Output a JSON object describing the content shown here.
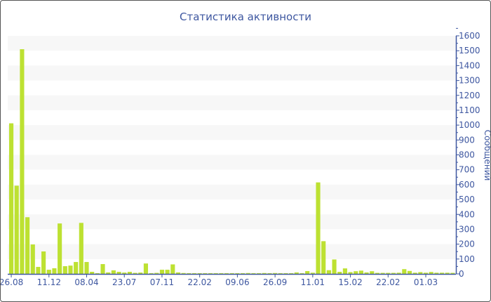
{
  "chart_data": {
    "type": "bar",
    "title": "Статистика активности",
    "ylabel": "Сообщений",
    "xlabel": "",
    "ylim": [
      0,
      1600
    ],
    "ytick_step": 100,
    "grid": "alternating horizontal bands",
    "bar_color": "#bde132",
    "text_color": "#3e57a0",
    "x_tick_labels": [
      "26.08",
      "11.12",
      "08.04",
      "23.07",
      "07.11",
      "22.02",
      "09.06",
      "26.09",
      "11.01",
      "15.02",
      "22.02",
      "01.03"
    ],
    "x_tick_every": 7,
    "values": [
      1012,
      593,
      1510,
      381,
      198,
      47,
      151,
      28,
      38,
      339,
      52,
      56,
      80,
      343,
      80,
      14,
      5,
      66,
      10,
      24,
      14,
      9,
      14,
      7,
      9,
      70,
      5,
      7,
      28,
      28,
      64,
      10,
      6,
      5,
      5,
      5,
      5,
      5,
      5,
      5,
      5,
      5,
      5,
      5,
      6,
      5,
      5,
      6,
      5,
      6,
      5,
      5,
      5,
      10,
      5,
      19,
      8,
      615,
      220,
      25,
      97,
      14,
      37,
      12,
      18,
      22,
      10,
      18,
      7,
      7,
      7,
      7,
      8,
      32,
      20,
      8,
      12,
      8,
      13,
      8,
      8,
      8,
      7
    ]
  }
}
